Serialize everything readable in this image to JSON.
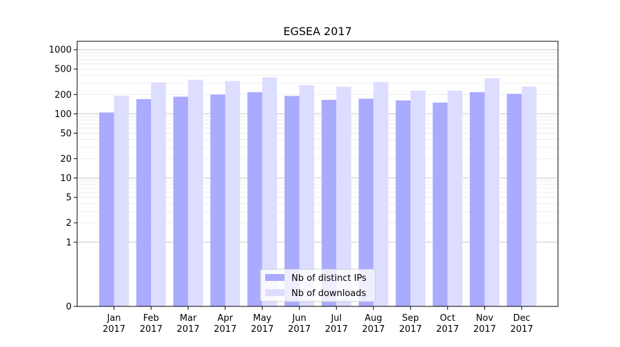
{
  "chart_data": {
    "type": "bar",
    "title": "EGSEA 2017",
    "xlabel": "",
    "ylabel": "",
    "yscale": "symlog",
    "ylim": [
      0,
      1350
    ],
    "grid": {
      "y_major": true,
      "y_minor": true,
      "x": false
    },
    "legend_position": "lower-center",
    "categories": [
      [
        "Jan",
        "2017"
      ],
      [
        "Feb",
        "2017"
      ],
      [
        "Mar",
        "2017"
      ],
      [
        "Apr",
        "2017"
      ],
      [
        "May",
        "2017"
      ],
      [
        "Jun",
        "2017"
      ],
      [
        "Jul",
        "2017"
      ],
      [
        "Aug",
        "2017"
      ],
      [
        "Sep",
        "2017"
      ],
      [
        "Oct",
        "2017"
      ],
      [
        "Nov",
        "2017"
      ],
      [
        "Dec",
        "2017"
      ]
    ],
    "yticks": [
      0,
      1,
      2,
      5,
      10,
      20,
      50,
      100,
      200,
      500,
      1000
    ],
    "ytick_labels": [
      "0",
      "1",
      "2",
      "5",
      "10",
      "20",
      "50",
      "100",
      "200",
      "500",
      "1000"
    ],
    "series": [
      {
        "name": "Nb of distinct IPs",
        "color": "#aaaaff",
        "values": [
          105,
          170,
          185,
          200,
          218,
          190,
          165,
          172,
          162,
          150,
          218,
          205
        ]
      },
      {
        "name": "Nb of downloads",
        "color": "#ddddff",
        "values": [
          190,
          310,
          340,
          325,
          370,
          280,
          265,
          315,
          230,
          230,
          360,
          265
        ]
      }
    ]
  }
}
